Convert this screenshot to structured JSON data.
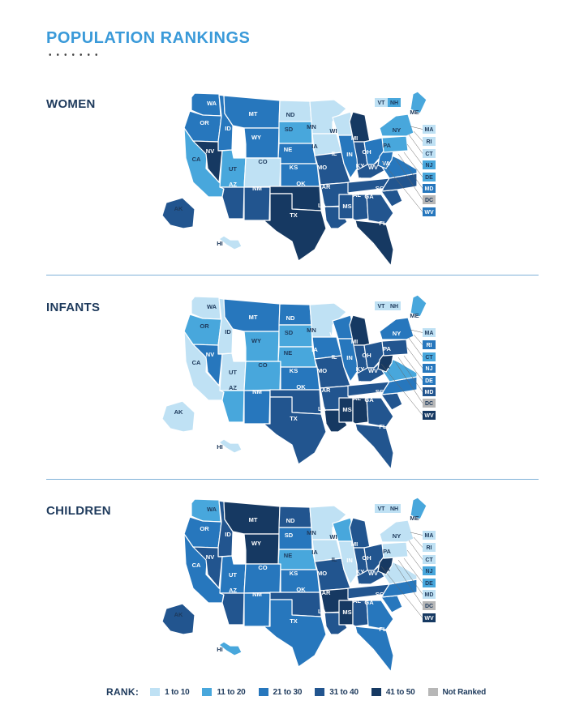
{
  "title": "POPULATION RANKINGS",
  "colors": {
    "r1": "#bfe1f4",
    "r2": "#48a7dc",
    "r3": "#2777bd",
    "r4": "#22558f",
    "r5": "#163962",
    "nr": "#b7b7b7"
  },
  "legend": {
    "title": "RANK:",
    "items": [
      {
        "key": "r1",
        "label": "1 to 10"
      },
      {
        "key": "r2",
        "label": "11 to 20"
      },
      {
        "key": "r3",
        "label": "21 to 30"
      },
      {
        "key": "r4",
        "label": "31 to 40"
      },
      {
        "key": "r5",
        "label": "41 to 50"
      },
      {
        "key": "nr",
        "label": "Not Ranked"
      }
    ]
  },
  "sections": [
    {
      "name": "WOMEN",
      "ranks": {
        "WA": "r3",
        "OR": "r3",
        "CA": "r2",
        "ID": "r3",
        "NV": "r5",
        "UT": "r2",
        "AZ": "r4",
        "MT": "r3",
        "WY": "r3",
        "CO": "r1",
        "NM": "r4",
        "ND": "r1",
        "SD": "r2",
        "NE": "r3",
        "KS": "r3",
        "OK": "r5",
        "TX": "r5",
        "MN": "r1",
        "IA": "r1",
        "MO": "r4",
        "AR": "r4",
        "LA": "r4",
        "WI": "r1",
        "IL": "r3",
        "MI": "r5",
        "IN": "r4",
        "OH": "r3",
        "KY": "r4",
        "TN": "r4",
        "MS": "r4",
        "AL": "r4",
        "GA": "r4",
        "FL": "r5",
        "SC": "r4",
        "NC": "r4",
        "VA": "r3",
        "WV": "r3",
        "PA": "r2",
        "NY": "r2",
        "ME": "r2",
        "VT": "r1",
        "NH": "r2",
        "MA": "r1",
        "RI": "r1",
        "CT": "r1",
        "NJ": "r2",
        "DE": "r2",
        "MD": "r3",
        "DC": "nr",
        "AK": "r4",
        "HI": "r1"
      }
    },
    {
      "name": "INFANTS",
      "ranks": {
        "WA": "r1",
        "OR": "r2",
        "CA": "r1",
        "ID": "r1",
        "NV": "r3",
        "UT": "r1",
        "AZ": "r2",
        "MT": "r3",
        "WY": "r2",
        "CO": "r2",
        "NM": "r3",
        "ND": "r3",
        "SD": "r2",
        "NE": "r2",
        "KS": "r3",
        "OK": "r4",
        "TX": "r4",
        "MN": "r1",
        "IA": "r3",
        "MO": "r4",
        "AR": "r4",
        "LA": "r5",
        "WI": "r3",
        "IL": "r3",
        "MI": "r5",
        "IN": "r4",
        "OH": "r4",
        "KY": "r4",
        "TN": "r4",
        "MS": "r5",
        "AL": "r5",
        "GA": "r4",
        "FL": "r4",
        "SC": "r4",
        "NC": "r3",
        "VA": "r2",
        "WV": "r5",
        "PA": "r4",
        "NY": "r3",
        "ME": "r2",
        "VT": "r1",
        "NH": "r1",
        "MA": "r1",
        "RI": "r3",
        "CT": "r2",
        "NJ": "r3",
        "DE": "r3",
        "MD": "r4",
        "DC": "nr",
        "AK": "r1",
        "HI": "r1"
      }
    },
    {
      "name": "CHILDREN",
      "ranks": {
        "WA": "r2",
        "OR": "r3",
        "CA": "r3",
        "ID": "r4",
        "NV": "r4",
        "UT": "r3",
        "AZ": "r4",
        "MT": "r5",
        "WY": "r5",
        "CO": "r3",
        "NM": "r3",
        "ND": "r4",
        "SD": "r3",
        "NE": "r2",
        "KS": "r3",
        "OK": "r4",
        "TX": "r3",
        "MN": "r1",
        "IA": "r1",
        "MO": "r4",
        "AR": "r5",
        "LA": "r4",
        "WI": "r2",
        "IL": "r1",
        "MI": "r4",
        "IN": "r4",
        "OH": "r4",
        "KY": "r4",
        "TN": "r4",
        "MS": "r5",
        "AL": "r4",
        "GA": "r3",
        "FL": "r3",
        "SC": "r3",
        "NC": "r3",
        "VA": "r1",
        "WV": "r5",
        "PA": "r1",
        "NY": "r1",
        "ME": "r2",
        "VT": "r1",
        "NH": "r1",
        "MA": "r1",
        "RI": "r1",
        "CT": "r1",
        "NJ": "r2",
        "DE": "r2",
        "MD": "r1",
        "DC": "nr",
        "AK": "r4",
        "HI": "r2"
      }
    }
  ]
}
